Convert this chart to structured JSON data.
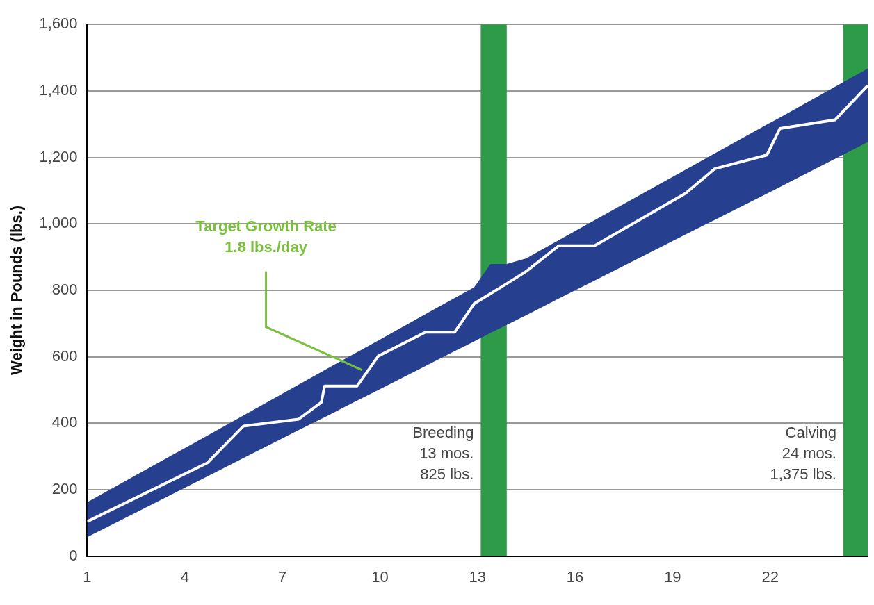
{
  "chart_data": {
    "type": "line",
    "ylabel": "Weight in Pounds (lbs.)",
    "xlim": [
      1,
      25
    ],
    "xticks": [
      1,
      4,
      7,
      10,
      13,
      16,
      19,
      22
    ],
    "ylim": [
      0,
      1600
    ],
    "yticks": [
      0,
      {
        "value": 200,
        "label": "200"
      },
      {
        "value": 400,
        "label": "400"
      },
      {
        "value": 600,
        "label": "600"
      },
      {
        "value": 800,
        "label": "800"
      },
      {
        "value": 1000,
        "label": "1,000"
      },
      {
        "value": 1200,
        "label": "1,200"
      },
      {
        "value": 1400,
        "label": "1,400"
      },
      {
        "value": 1600,
        "label": "1,600"
      }
    ],
    "grid": "y",
    "legend": false,
    "marker": "none",
    "line_style": "solid",
    "series": [
      {
        "color": "#ffffff",
        "x": [
          1,
          4.7,
          5.8,
          7.5,
          8.2,
          8.3,
          9.3,
          9.95,
          11.4,
          12.3,
          12.9,
          13.4,
          13.9,
          14.5,
          15.5,
          16.6,
          19.4,
          20.3,
          21.9,
          22.3,
          24,
          25
        ],
        "values": [
          104,
          281,
          391,
          412,
          463,
          512,
          512,
          602,
          674,
          674,
          760,
          790,
          820,
          857,
          934,
          934,
          1092,
          1166,
          1207,
          1287,
          1313,
          1416
        ],
        "lower": [
          57,
          240,
          295,
          379,
          413,
          418,
          468,
          500,
          572,
          617,
          646,
          672,
          696,
          725,
          775,
          829,
          968,
          1012,
          1091,
          1111,
          1196,
          1246
        ],
        "upper": [
          162,
          363,
          423,
          516,
          554,
          560,
          614,
          649,
          728,
          777,
          809,
          879,
          879,
          896,
          951,
          1011,
          1163,
          1212,
          1299,
          1320,
          1413,
          1467
        ]
      }
    ],
    "bands": [
      {
        "axis": "x",
        "from": 13.1,
        "to": 13.9,
        "label": "Breeding\n13 mos.\n825 lbs.",
        "color": "#2e9b48"
      },
      {
        "axis": "x",
        "from": 24.25,
        "to": 25,
        "label": "Calving\n24 mos.\n1,375 lbs.",
        "color": "#2e9b48"
      }
    ],
    "annotations": [
      "Target Growth Rate\n1.8 lbs./day"
    ]
  }
}
